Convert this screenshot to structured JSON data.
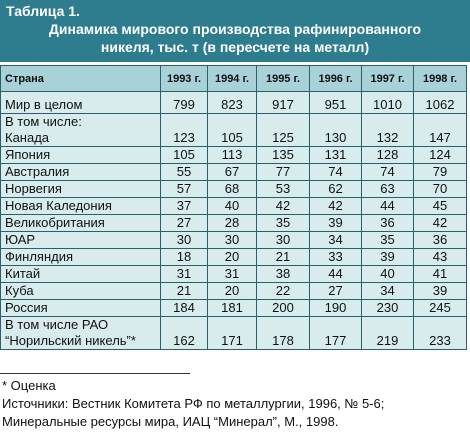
{
  "header": {
    "title": "Таблица 1.",
    "subtitle": "Динамика мирового производства рафинированного никеля, тыс. т (в пересчете на металл)"
  },
  "table": {
    "columns": [
      "Страна",
      "1993 г.",
      "1994 г.",
      "1995 г.",
      "1996 г.",
      "1997 г.",
      "1998 г."
    ],
    "rows": [
      [
        "Мир в целом",
        799,
        823,
        917,
        951,
        1010,
        1062
      ],
      [
        "В том числе:\nКанада",
        123,
        105,
        125,
        130,
        132,
        147
      ],
      [
        "Япония",
        105,
        113,
        135,
        131,
        128,
        124
      ],
      [
        "Австралия",
        55,
        67,
        77,
        74,
        74,
        79
      ],
      [
        "Норвегия",
        57,
        68,
        53,
        62,
        63,
        70
      ],
      [
        "Новая Каледония",
        37,
        40,
        42,
        42,
        44,
        45
      ],
      [
        "Великобритания",
        27,
        28,
        35,
        39,
        36,
        42
      ],
      [
        "ЮАР",
        30,
        30,
        30,
        34,
        35,
        36
      ],
      [
        "Финляндия",
        18,
        20,
        21,
        33,
        39,
        43
      ],
      [
        "Китай",
        31,
        31,
        38,
        44,
        40,
        41
      ],
      [
        "Куба",
        21,
        20,
        22,
        27,
        34,
        39
      ],
      [
        "Россия",
        184,
        181,
        200,
        190,
        230,
        245
      ],
      [
        "В том числе РАО\n“Норильский никель”*",
        162,
        171,
        178,
        177,
        219,
        233
      ]
    ]
  },
  "notes": [
    "* Оценка",
    "Источники: Вестник Комитета РФ по металлургии, 1996, № 5-6;",
    "Минеральные ресурсы мира, ИАЦ “Минерал”, М., 1998."
  ]
}
